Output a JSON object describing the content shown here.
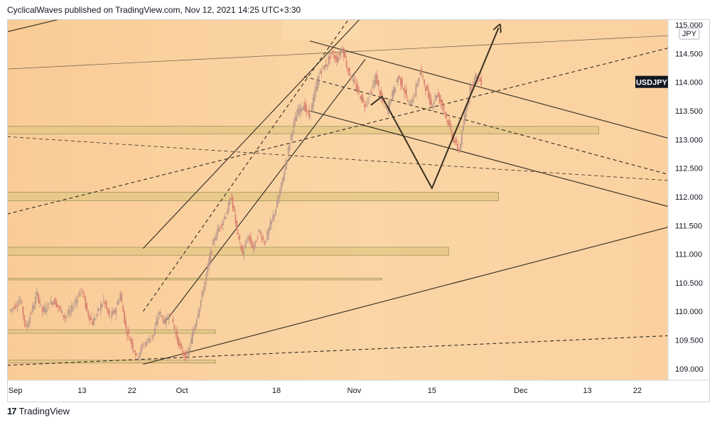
{
  "header": {
    "publish_line": "CyclicalWaves published on TradingView.com, Nov 12, 2021 14:25 UTC+3:30"
  },
  "footer": {
    "brand": "TradingView",
    "logo_icon": "tradingview-logo-icon"
  },
  "chart_data": {
    "type": "candlestick",
    "symbol_label": "USDJPY",
    "currency_label": "JPY",
    "y_ticks": [
      "115.000",
      "114.500",
      "114.000",
      "113.500",
      "113.000",
      "112.500",
      "112.000",
      "111.500",
      "111.000",
      "110.500",
      "110.000",
      "109.500",
      "109.000"
    ],
    "y_tick_values": [
      115.0,
      114.5,
      114.0,
      113.5,
      113.0,
      112.5,
      112.0,
      111.5,
      111.0,
      110.5,
      110.0,
      109.5,
      109.0
    ],
    "ylim": [
      108.8,
      115.1
    ],
    "x_ticks": [
      "Sep",
      "13",
      "22",
      "Oct",
      "18",
      "Nov",
      "15",
      "Dec",
      "13",
      "22"
    ],
    "x_tick_days": [
      1,
      13,
      22,
      31,
      48,
      62,
      76,
      92,
      104,
      113
    ],
    "xlim": [
      -0.5,
      118.5
    ],
    "last_price": 114.0,
    "price_path": [
      [
        0,
        110.0
      ],
      [
        2,
        110.2
      ],
      [
        3,
        109.7
      ],
      [
        5,
        110.3
      ],
      [
        6,
        110.0
      ],
      [
        8,
        110.2
      ],
      [
        10,
        109.9
      ],
      [
        11,
        110.0
      ],
      [
        13,
        110.4
      ],
      [
        14,
        110.0
      ],
      [
        15,
        109.8
      ],
      [
        17,
        110.2
      ],
      [
        18,
        109.9
      ],
      [
        19,
        110.0
      ],
      [
        20,
        110.3
      ],
      [
        21,
        109.7
      ],
      [
        23,
        109.2
      ],
      [
        24,
        109.4
      ],
      [
        26,
        109.6
      ],
      [
        27,
        110.0
      ],
      [
        28,
        109.8
      ],
      [
        29,
        110.0
      ],
      [
        30,
        109.6
      ],
      [
        31,
        109.3
      ],
      [
        32,
        109.2
      ],
      [
        33,
        109.6
      ],
      [
        34,
        110.0
      ],
      [
        35,
        110.4
      ],
      [
        36,
        110.9
      ],
      [
        37,
        111.3
      ],
      [
        38,
        111.5
      ],
      [
        39,
        111.7
      ],
      [
        40,
        112.0
      ],
      [
        41,
        111.4
      ],
      [
        42,
        111.0
      ],
      [
        43,
        111.3
      ],
      [
        44,
        111.1
      ],
      [
        45,
        111.4
      ],
      [
        46,
        111.2
      ],
      [
        47,
        111.5
      ],
      [
        48,
        111.8
      ],
      [
        49,
        112.2
      ],
      [
        50,
        112.7
      ],
      [
        51,
        113.2
      ],
      [
        52,
        113.5
      ],
      [
        53,
        113.6
      ],
      [
        54,
        113.4
      ],
      [
        55,
        113.8
      ],
      [
        56,
        114.2
      ],
      [
        57,
        114.3
      ],
      [
        58,
        114.5
      ],
      [
        59,
        114.4
      ],
      [
        60,
        114.6
      ],
      [
        61,
        114.2
      ],
      [
        62,
        114.0
      ],
      [
        63,
        113.8
      ],
      [
        64,
        113.6
      ],
      [
        65,
        113.8
      ],
      [
        66,
        114.1
      ],
      [
        67,
        113.7
      ],
      [
        68,
        113.5
      ],
      [
        69,
        113.8
      ],
      [
        70,
        114.1
      ],
      [
        71,
        113.9
      ],
      [
        72,
        113.6
      ],
      [
        73,
        113.8
      ],
      [
        74,
        114.2
      ],
      [
        75,
        113.9
      ],
      [
        76,
        113.6
      ],
      [
        77,
        113.8
      ],
      [
        78,
        113.6
      ],
      [
        79,
        113.3
      ],
      [
        80,
        113.0
      ],
      [
        81,
        112.8
      ],
      [
        82,
        113.4
      ],
      [
        83,
        113.9
      ],
      [
        84,
        114.1
      ],
      [
        85,
        114.0
      ]
    ],
    "zones": [
      {
        "y_low": 113.1,
        "y_high": 113.23,
        "x_start": -0.5,
        "x_end": 106
      },
      {
        "y_low": 111.93,
        "y_high": 112.08,
        "x_start": -0.5,
        "x_end": 88
      },
      {
        "y_low": 110.98,
        "y_high": 111.12,
        "x_start": -0.5,
        "x_end": 79
      },
      {
        "y_low": 110.55,
        "y_high": 110.58,
        "x_start": -0.5,
        "x_end": 67
      },
      {
        "y_low": 109.62,
        "y_high": 109.68,
        "x_start": -0.5,
        "x_end": 37
      },
      {
        "y_low": 109.1,
        "y_high": 109.15,
        "x_start": -0.5,
        "x_end": 37
      }
    ],
    "trend_lines": [
      {
        "p1": [
          -0.5,
          114.88
        ],
        "p2": [
          9,
          115.1
        ],
        "style": "solid"
      },
      {
        "p1": [
          -0.5,
          114.23
        ],
        "p2": [
          124,
          114.84
        ],
        "style": "solid-thin"
      },
      {
        "p1": [
          24,
          109.08
        ],
        "p2": [
          124,
          111.61
        ],
        "style": "solid"
      },
      {
        "p1": [
          -0.5,
          109.06
        ],
        "p2": [
          124,
          109.6
        ],
        "style": "dashed"
      },
      {
        "p1": [
          -0.5,
          113.05
        ],
        "p2": [
          124,
          112.25
        ],
        "style": "dashed-thin"
      },
      {
        "p1": [
          -0.5,
          111.7
        ],
        "p2": [
          124,
          114.73
        ],
        "style": "dashed"
      },
      {
        "p1": [
          54,
          114.72
        ],
        "p2": [
          124,
          112.88
        ],
        "style": "solid"
      },
      {
        "p1": [
          54,
          113.5
        ],
        "p2": [
          124,
          111.69
        ],
        "style": "solid"
      },
      {
        "p1": [
          53,
          114.1
        ],
        "p2": [
          124,
          112.25
        ],
        "style": "dashed"
      },
      {
        "p1": [
          24,
          111.1
        ],
        "p2": [
          63,
          115.1
        ],
        "style": "solid"
      },
      {
        "p1": [
          28,
          109.82
        ],
        "p2": [
          64,
          114.4
        ],
        "style": "solid"
      },
      {
        "p1": [
          24,
          110.0
        ],
        "p2": [
          61,
          115.1
        ],
        "style": "dashed"
      }
    ],
    "projection": [
      [
        65,
        113.6
      ],
      [
        67,
        113.75
      ],
      [
        76,
        112.15
      ],
      [
        88,
        114.95
      ]
    ],
    "projection_arrowhead": true
  }
}
